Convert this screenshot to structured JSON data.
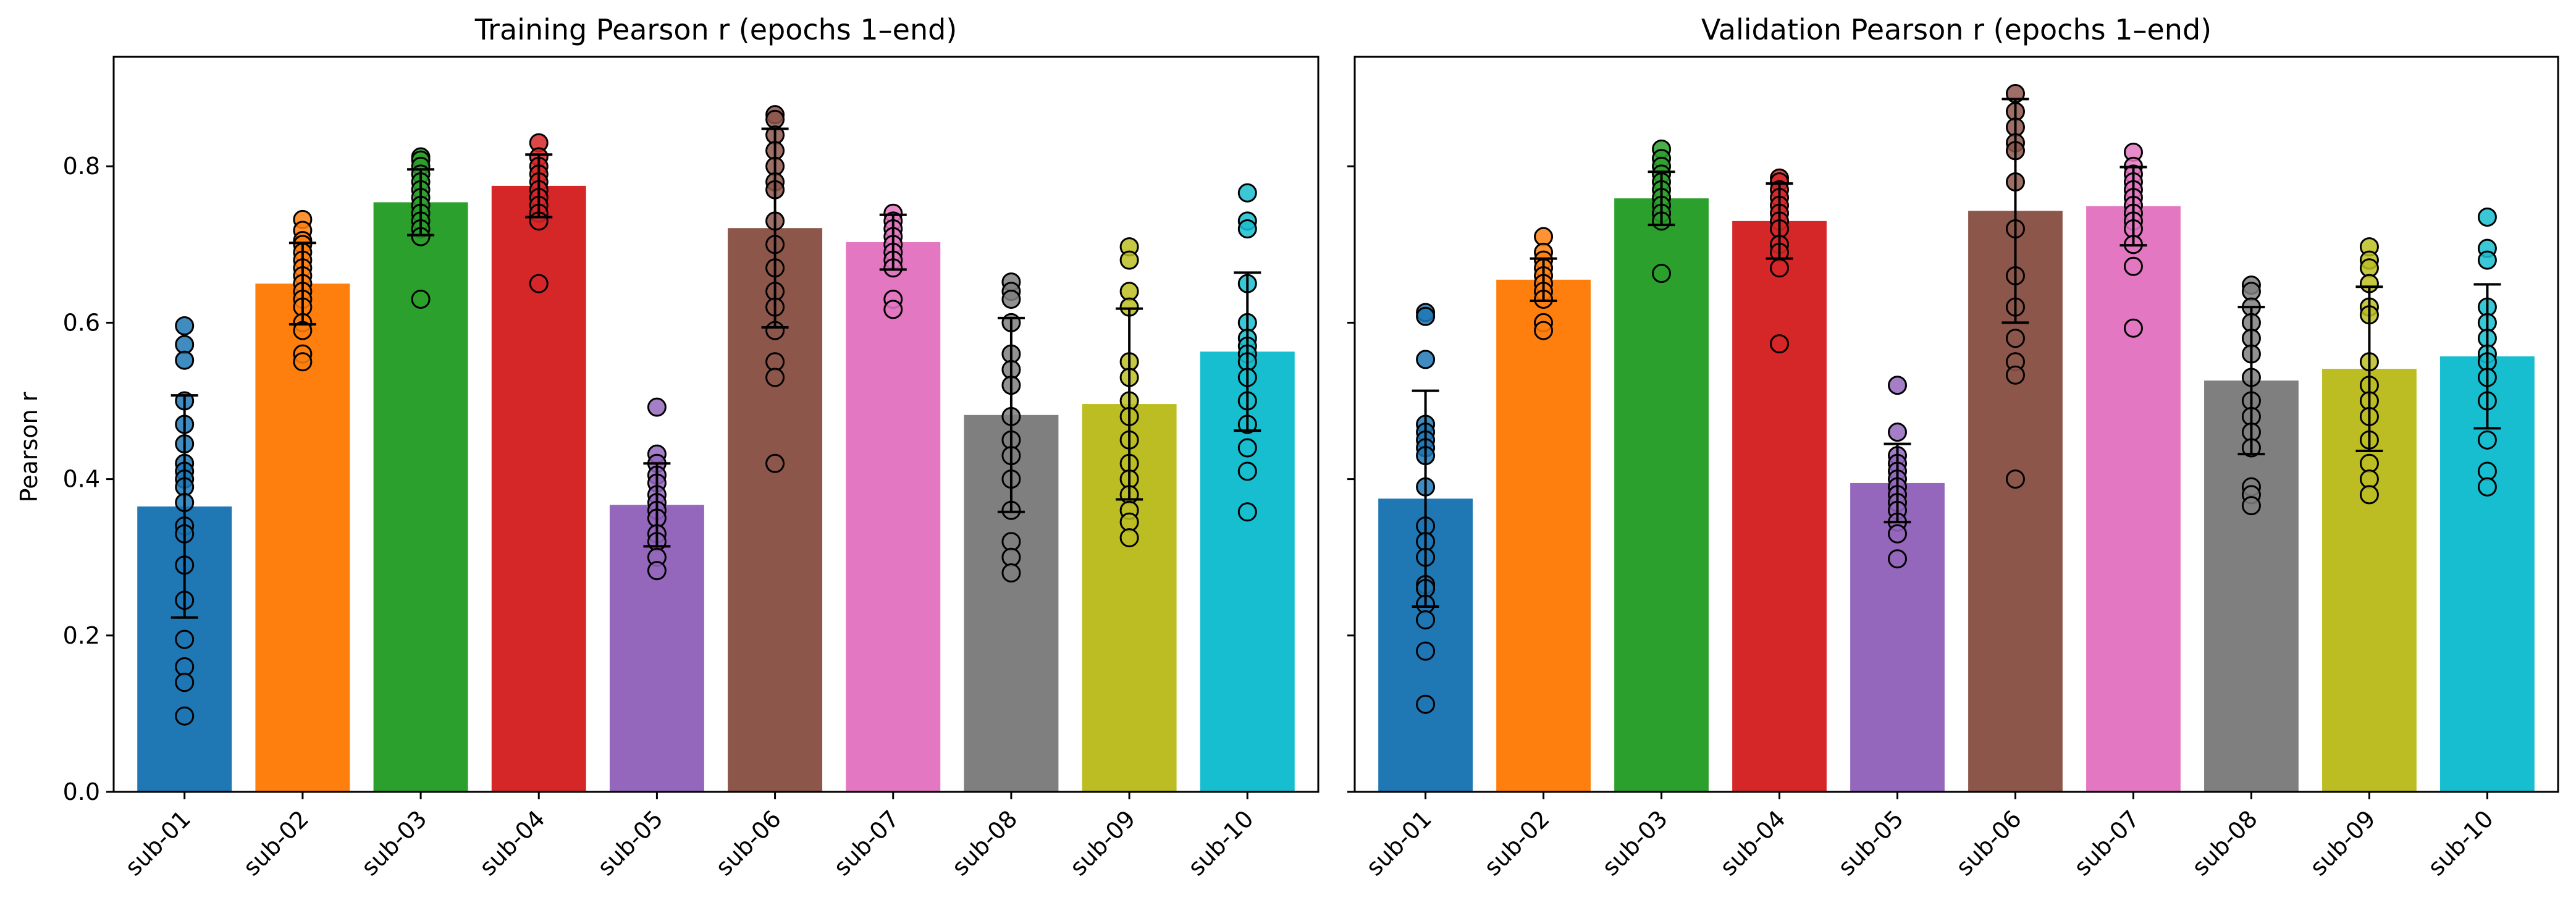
{
  "chart_data": [
    {
      "type": "bar",
      "title": "Training Pearson r (epochs 1–end)",
      "ylabel": "Pearson r",
      "xlabel": "",
      "ylim": [
        0,
        0.94
      ],
      "yticks": [
        "0.0",
        "0.2",
        "0.4",
        "0.6",
        "0.8"
      ],
      "categories": [
        "sub-01",
        "sub-02",
        "sub-03",
        "sub-04",
        "sub-05",
        "sub-06",
        "sub-07",
        "sub-08",
        "sub-09",
        "sub-10"
      ],
      "values": [
        0.365,
        0.65,
        0.754,
        0.775,
        0.367,
        0.721,
        0.703,
        0.482,
        0.496,
        0.563
      ],
      "error": [
        0.142,
        0.052,
        0.042,
        0.04,
        0.053,
        0.127,
        0.035,
        0.124,
        0.122,
        0.101
      ],
      "points": [
        [
          0.596,
          0.572,
          0.552,
          0.5,
          0.47,
          0.445,
          0.42,
          0.41,
          0.4,
          0.39,
          0.37,
          0.34,
          0.33,
          0.29,
          0.245,
          0.195,
          0.16,
          0.14,
          0.097
        ],
        [
          0.732,
          0.718,
          0.705,
          0.7,
          0.69,
          0.68,
          0.67,
          0.66,
          0.65,
          0.64,
          0.63,
          0.62,
          0.6,
          0.59,
          0.56,
          0.55
        ],
        [
          0.812,
          0.808,
          0.8,
          0.79,
          0.78,
          0.77,
          0.76,
          0.75,
          0.74,
          0.73,
          0.72,
          0.71,
          0.63
        ],
        [
          0.83,
          0.812,
          0.8,
          0.79,
          0.78,
          0.77,
          0.76,
          0.75,
          0.74,
          0.73,
          0.65
        ],
        [
          0.492,
          0.432,
          0.42,
          0.405,
          0.395,
          0.38,
          0.37,
          0.36,
          0.35,
          0.33,
          0.32,
          0.3,
          0.283
        ],
        [
          0.866,
          0.86,
          0.84,
          0.82,
          0.8,
          0.78,
          0.77,
          0.73,
          0.7,
          0.67,
          0.64,
          0.62,
          0.59,
          0.55,
          0.53,
          0.42
        ],
        [
          0.74,
          0.73,
          0.72,
          0.71,
          0.7,
          0.69,
          0.68,
          0.67,
          0.63,
          0.617
        ],
        [
          0.652,
          0.64,
          0.63,
          0.6,
          0.56,
          0.54,
          0.52,
          0.48,
          0.45,
          0.43,
          0.4,
          0.36,
          0.32,
          0.3,
          0.28
        ],
        [
          0.697,
          0.68,
          0.64,
          0.62,
          0.55,
          0.53,
          0.5,
          0.48,
          0.45,
          0.42,
          0.4,
          0.38,
          0.36,
          0.345,
          0.325
        ],
        [
          0.766,
          0.73,
          0.72,
          0.65,
          0.6,
          0.58,
          0.57,
          0.56,
          0.55,
          0.53,
          0.5,
          0.47,
          0.44,
          0.41,
          0.358
        ]
      ]
    },
    {
      "type": "bar",
      "title": "Validation Pearson r (epochs 1–end)",
      "ylabel": "",
      "xlabel": "",
      "ylim": [
        0,
        0.94
      ],
      "yticks": [
        "",
        "",
        "",
        "",
        ""
      ],
      "categories": [
        "sub-01",
        "sub-02",
        "sub-03",
        "sub-04",
        "sub-05",
        "sub-06",
        "sub-07",
        "sub-08",
        "sub-09",
        "sub-10"
      ],
      "values": [
        0.375,
        0.655,
        0.759,
        0.73,
        0.395,
        0.743,
        0.749,
        0.526,
        0.541,
        0.557
      ],
      "error": [
        0.138,
        0.027,
        0.034,
        0.048,
        0.05,
        0.143,
        0.05,
        0.094,
        0.105,
        0.092
      ],
      "points": [
        [
          0.613,
          0.608,
          0.553,
          0.47,
          0.46,
          0.45,
          0.44,
          0.43,
          0.39,
          0.34,
          0.32,
          0.3,
          0.265,
          0.26,
          0.24,
          0.22,
          0.18,
          0.112
        ],
        [
          0.71,
          0.69,
          0.68,
          0.67,
          0.66,
          0.65,
          0.64,
          0.63,
          0.6,
          0.59
        ],
        [
          0.822,
          0.81,
          0.8,
          0.79,
          0.78,
          0.77,
          0.76,
          0.75,
          0.74,
          0.73,
          0.663
        ],
        [
          0.785,
          0.78,
          0.77,
          0.76,
          0.75,
          0.74,
          0.73,
          0.72,
          0.7,
          0.69,
          0.67,
          0.573
        ],
        [
          0.52,
          0.46,
          0.43,
          0.42,
          0.41,
          0.4,
          0.39,
          0.38,
          0.37,
          0.36,
          0.345,
          0.33,
          0.298
        ],
        [
          0.893,
          0.87,
          0.85,
          0.83,
          0.82,
          0.78,
          0.72,
          0.66,
          0.62,
          0.58,
          0.55,
          0.533,
          0.4
        ],
        [
          0.818,
          0.8,
          0.79,
          0.78,
          0.77,
          0.76,
          0.75,
          0.74,
          0.73,
          0.72,
          0.7,
          0.672,
          0.593
        ],
        [
          0.648,
          0.64,
          0.62,
          0.6,
          0.58,
          0.56,
          0.53,
          0.5,
          0.48,
          0.46,
          0.44,
          0.39,
          0.38,
          0.366
        ],
        [
          0.697,
          0.68,
          0.67,
          0.65,
          0.62,
          0.61,
          0.55,
          0.52,
          0.5,
          0.48,
          0.45,
          0.42,
          0.4,
          0.38
        ],
        [
          0.735,
          0.695,
          0.68,
          0.62,
          0.6,
          0.58,
          0.56,
          0.55,
          0.53,
          0.5,
          0.45,
          0.41,
          0.39
        ]
      ]
    }
  ],
  "colors": [
    "#1f77b4",
    "#ff7f0e",
    "#2ca02c",
    "#d62728",
    "#9467bd",
    "#8c564b",
    "#e377c2",
    "#7f7f7f",
    "#bcbd22",
    "#17becf"
  ]
}
